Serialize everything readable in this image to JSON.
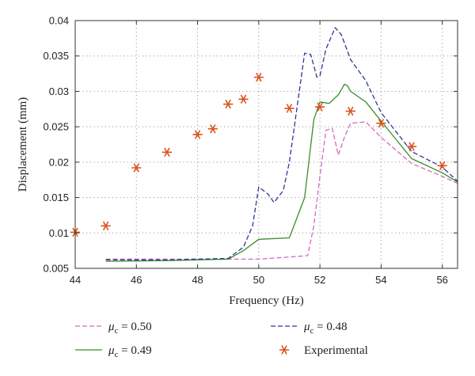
{
  "chart_data": {
    "type": "line",
    "xlabel": "Frequency (Hz)",
    "ylabel": "Displacement (mm)",
    "xlim": [
      44,
      56.5
    ],
    "ylim": [
      0.005,
      0.04
    ],
    "xticks": [
      44,
      46,
      48,
      50,
      52,
      54,
      56
    ],
    "xtick_labels": [
      "44",
      "46",
      "48",
      "50",
      "52",
      "54",
      "56"
    ],
    "yticks": [
      0.005,
      0.01,
      0.015,
      0.02,
      0.025,
      0.03,
      0.035,
      0.04
    ],
    "ytick_labels": [
      "0.005",
      "0.01",
      "0.015",
      "0.02",
      "0.025",
      "0.03",
      "0.035",
      "0.04"
    ],
    "grid": true,
    "legend_placement": "bottom",
    "series": [
      {
        "name_symbol": "μ",
        "name_sub": "c",
        "name_rest": " = 0.50",
        "style": "dashed",
        "color": "#d36cc0",
        "x": [
          45,
          47,
          49,
          50,
          51,
          51.6,
          51.8,
          52,
          52.2,
          52.4,
          52.6,
          52.8,
          53,
          53.5,
          54,
          55,
          56,
          56.5
        ],
        "y": [
          0.0063,
          0.0063,
          0.0063,
          0.0063,
          0.0066,
          0.0068,
          0.011,
          0.018,
          0.0245,
          0.0248,
          0.021,
          0.0235,
          0.0255,
          0.0257,
          0.0235,
          0.0198,
          0.018,
          0.017
        ]
      },
      {
        "name_symbol": "μ",
        "name_sub": "c",
        "name_rest": " = 0.49",
        "style": "solid",
        "color": "#3a8c2a",
        "x": [
          45,
          47,
          49,
          49.5,
          50,
          51,
          51.5,
          51.8,
          52,
          52.3,
          52.6,
          52.8,
          52.9,
          53,
          53.5,
          54,
          55,
          56,
          56.5
        ],
        "y": [
          0.006,
          0.0061,
          0.0063,
          0.0075,
          0.0091,
          0.0093,
          0.015,
          0.026,
          0.0285,
          0.0283,
          0.0295,
          0.031,
          0.0308,
          0.03,
          0.0285,
          0.0258,
          0.0205,
          0.0185,
          0.0172
        ]
      },
      {
        "name_symbol": "μ",
        "name_sub": "c",
        "name_rest": " = 0.48",
        "style": "dashed",
        "color": "#2c3896",
        "x": [
          45,
          47,
          49,
          49.5,
          49.8,
          50,
          50.3,
          50.5,
          50.8,
          51,
          51.5,
          51.7,
          51.9,
          52,
          52.2,
          52.5,
          52.7,
          53,
          53.5,
          54,
          55,
          56,
          56.5
        ],
        "y": [
          0.0062,
          0.0062,
          0.0064,
          0.008,
          0.011,
          0.0165,
          0.0155,
          0.0143,
          0.016,
          0.02,
          0.0354,
          0.0352,
          0.032,
          0.0322,
          0.036,
          0.039,
          0.038,
          0.0345,
          0.0315,
          0.027,
          0.0215,
          0.0193,
          0.0173
        ]
      }
    ],
    "experimental": {
      "name": "Experimental",
      "color": "#d9541c",
      "x": [
        44,
        45,
        46,
        47,
        48,
        48.5,
        49,
        49.5,
        50,
        51,
        52,
        53,
        54,
        55,
        56
      ],
      "y": [
        0.0101,
        0.011,
        0.0192,
        0.0214,
        0.0239,
        0.0247,
        0.0282,
        0.0289,
        0.032,
        0.0276,
        0.0278,
        0.0272,
        0.0255,
        0.0222,
        0.0195
      ]
    }
  }
}
